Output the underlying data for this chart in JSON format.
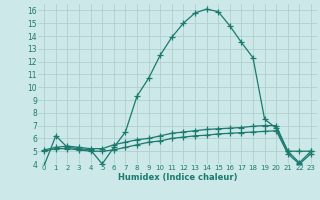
{
  "xlabel": "Humidex (Indice chaleur)",
  "bg_color": "#cce8e8",
  "grid_color": "#aacccc",
  "line_color": "#1a7a6e",
  "xlim": [
    -0.5,
    23.5
  ],
  "ylim": [
    4,
    16.5
  ],
  "yticks": [
    4,
    5,
    6,
    7,
    8,
    9,
    10,
    11,
    12,
    13,
    14,
    15,
    16
  ],
  "xticks": [
    0,
    1,
    2,
    3,
    4,
    5,
    6,
    7,
    8,
    9,
    10,
    11,
    12,
    13,
    14,
    15,
    16,
    17,
    18,
    19,
    20,
    21,
    22,
    23
  ],
  "line1_x": [
    0,
    1,
    2,
    3,
    4,
    5,
    6,
    7,
    8,
    9,
    10,
    11,
    12,
    13,
    14,
    15,
    16,
    17,
    18,
    19,
    20,
    21,
    22,
    23
  ],
  "line1_y": [
    3.9,
    6.2,
    5.3,
    5.2,
    5.1,
    4.0,
    5.3,
    6.5,
    9.3,
    10.7,
    12.5,
    13.9,
    15.0,
    15.8,
    16.1,
    15.9,
    14.8,
    13.5,
    12.3,
    7.5,
    6.8,
    5.0,
    4.1,
    5.0
  ],
  "line2_x": [
    0,
    1,
    2,
    3,
    4,
    5,
    6,
    7,
    8,
    9,
    10,
    11,
    12,
    13,
    14,
    15,
    16,
    17,
    18,
    19,
    20,
    21,
    22,
    23
  ],
  "line2_y": [
    5.1,
    5.3,
    5.4,
    5.3,
    5.2,
    5.2,
    5.5,
    5.7,
    5.9,
    6.0,
    6.2,
    6.4,
    6.5,
    6.6,
    6.7,
    6.75,
    6.8,
    6.85,
    6.95,
    7.0,
    7.0,
    5.0,
    5.0,
    5.0
  ],
  "line3_x": [
    0,
    1,
    2,
    3,
    4,
    5,
    6,
    7,
    8,
    9,
    10,
    11,
    12,
    13,
    14,
    15,
    16,
    17,
    18,
    19,
    20,
    21,
    22,
    23
  ],
  "line3_y": [
    5.0,
    5.2,
    5.2,
    5.1,
    5.0,
    5.0,
    5.1,
    5.3,
    5.5,
    5.7,
    5.8,
    6.0,
    6.1,
    6.2,
    6.25,
    6.35,
    6.4,
    6.45,
    6.5,
    6.55,
    6.6,
    4.8,
    4.0,
    4.8
  ],
  "marker": "+",
  "markersize": 4,
  "linewidth": 0.9
}
